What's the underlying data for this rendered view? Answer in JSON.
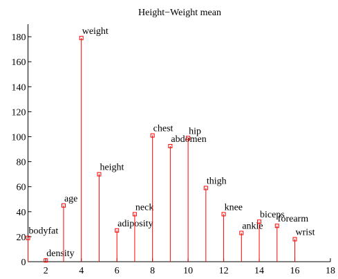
{
  "chart_data": {
    "type": "stem",
    "title": "Height−Weight mean",
    "categories": [
      "bodyfat",
      "density",
      "age",
      "weight",
      "height",
      "adiposity",
      "neck",
      "chest",
      "abdomen",
      "hip",
      "thigh",
      "knee",
      "ankle",
      "biceps",
      "forearm",
      "wrist"
    ],
    "x": [
      1,
      2,
      3,
      4,
      5,
      6,
      7,
      8,
      9,
      10,
      11,
      12,
      13,
      14,
      15,
      16
    ],
    "values": [
      19,
      1,
      45,
      179,
      70,
      25,
      38,
      101,
      92.5,
      99,
      59,
      38,
      23,
      32,
      28.7,
      18
    ],
    "color": "#ff0000",
    "xlim": [
      1,
      18
    ],
    "xticks": [
      2,
      4,
      6,
      8,
      10,
      12,
      14,
      16,
      18
    ],
    "ylim": [
      0,
      190
    ],
    "yticks": [
      0,
      20,
      40,
      60,
      80,
      100,
      120,
      140,
      160,
      180
    ]
  }
}
